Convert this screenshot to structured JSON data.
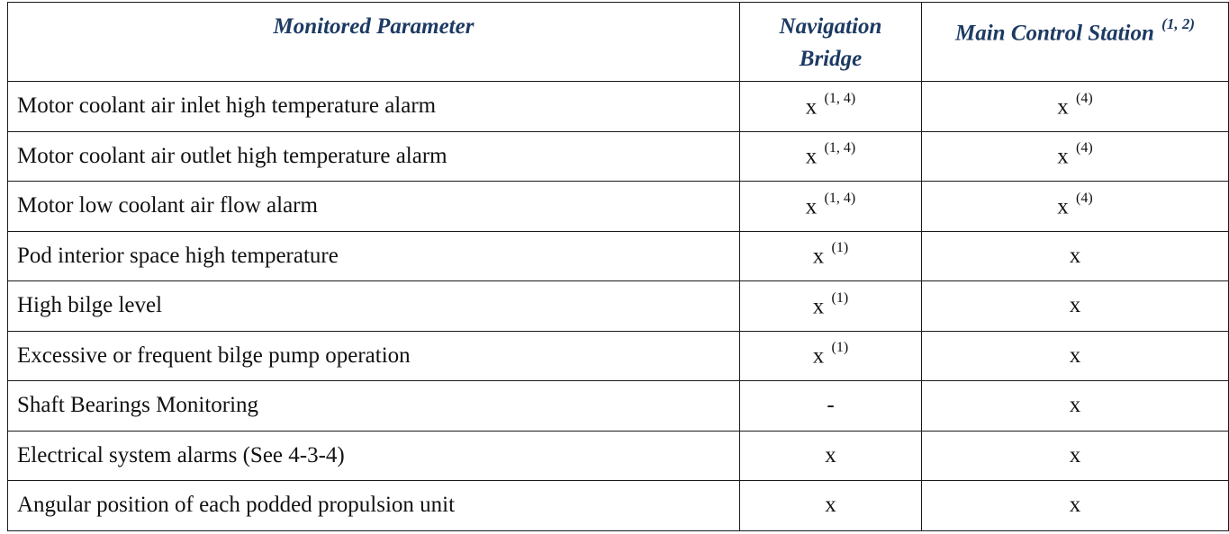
{
  "header": {
    "parameter": "Monitored Parameter",
    "bridge": "Navigation Bridge",
    "station": "Main Control Station",
    "station_note": "(1, 2)"
  },
  "rows": [
    {
      "parameter": "Motor coolant air inlet high temperature alarm",
      "bridge": "x",
      "bridge_note": "(1, 4)",
      "station": "x",
      "station_note": "(4)"
    },
    {
      "parameter": "Motor coolant air outlet high temperature alarm",
      "bridge": "x",
      "bridge_note": "(1, 4)",
      "station": "x",
      "station_note": "(4)"
    },
    {
      "parameter": "Motor low coolant air flow alarm",
      "bridge": "x",
      "bridge_note": "(1, 4)",
      "station": "x",
      "station_note": "(4)"
    },
    {
      "parameter": "Pod interior space high temperature",
      "bridge": "x",
      "bridge_note": "(1)",
      "station": "x",
      "station_note": ""
    },
    {
      "parameter": "High bilge level",
      "bridge": "x",
      "bridge_note": "(1)",
      "station": "x",
      "station_note": ""
    },
    {
      "parameter": "Excessive or frequent bilge pump operation",
      "bridge": "x",
      "bridge_note": "(1)",
      "station": "x",
      "station_note": ""
    },
    {
      "parameter": "Shaft Bearings Monitoring",
      "bridge": "-",
      "bridge_note": "",
      "station": "x",
      "station_note": ""
    },
    {
      "parameter": "Electrical system alarms (See 4-3-4)",
      "bridge": "x",
      "bridge_note": "",
      "station": "x",
      "station_note": ""
    },
    {
      "parameter": "Angular position of each podded propulsion unit",
      "bridge": "x",
      "bridge_note": "",
      "station": "x",
      "station_note": ""
    }
  ],
  "colors": {
    "header_text": "#1d3a63",
    "border": "#1a1a1a"
  }
}
